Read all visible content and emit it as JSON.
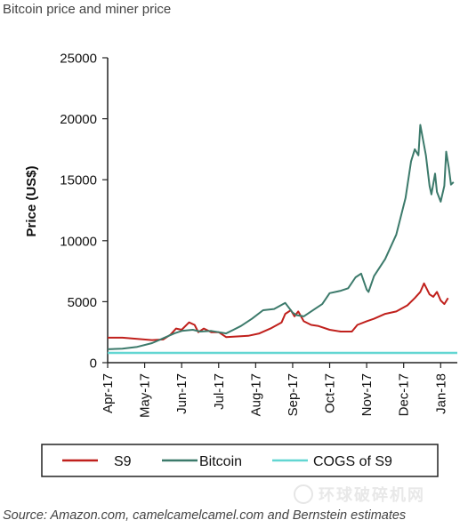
{
  "page": {
    "title": "Bitcoin price and miner price",
    "source": "Source: Amazon.com, camelcamelcamel.com and Bernstein estimates",
    "watermark": "环球破碎机网"
  },
  "chart_data": {
    "type": "line",
    "title": "",
    "xlabel": "",
    "ylabel": "Price (US$)",
    "ylim": [
      0,
      25000
    ],
    "yticks": [
      0,
      5000,
      10000,
      15000,
      20000,
      25000
    ],
    "xlim": [
      0,
      9.45
    ],
    "xticks": [
      "Apr-17",
      "May-17",
      "Jun-17",
      "Jul-17",
      "Aug-17",
      "Sep-17",
      "Oct-17",
      "Nov-17",
      "Dec-17",
      "Jan-18"
    ],
    "grid": false,
    "legend_position": "bottom",
    "series": [
      {
        "name": "S9",
        "color": "#c0201c",
        "points": [
          [
            0,
            2050
          ],
          [
            0.4,
            2050
          ],
          [
            0.8,
            1950
          ],
          [
            1.2,
            1850
          ],
          [
            1.5,
            1900
          ],
          [
            1.7,
            2300
          ],
          [
            1.85,
            2800
          ],
          [
            2.0,
            2700
          ],
          [
            2.2,
            3300
          ],
          [
            2.35,
            3100
          ],
          [
            2.45,
            2500
          ],
          [
            2.6,
            2800
          ],
          [
            2.8,
            2500
          ],
          [
            3.0,
            2500
          ],
          [
            3.2,
            2100
          ],
          [
            3.5,
            2150
          ],
          [
            3.8,
            2200
          ],
          [
            4.1,
            2400
          ],
          [
            4.4,
            2800
          ],
          [
            4.7,
            3300
          ],
          [
            4.8,
            4000
          ],
          [
            4.95,
            4300
          ],
          [
            5.05,
            3800
          ],
          [
            5.15,
            4200
          ],
          [
            5.3,
            3400
          ],
          [
            5.5,
            3100
          ],
          [
            5.7,
            3000
          ],
          [
            6.0,
            2700
          ],
          [
            6.3,
            2550
          ],
          [
            6.6,
            2550
          ],
          [
            6.75,
            3100
          ],
          [
            7.0,
            3400
          ],
          [
            7.2,
            3600
          ],
          [
            7.5,
            4000
          ],
          [
            7.8,
            4200
          ],
          [
            8.1,
            4700
          ],
          [
            8.3,
            5300
          ],
          [
            8.45,
            5800
          ],
          [
            8.55,
            6500
          ],
          [
            8.7,
            5600
          ],
          [
            8.8,
            5400
          ],
          [
            8.9,
            5800
          ],
          [
            9.0,
            5100
          ],
          [
            9.1,
            4800
          ],
          [
            9.2,
            5300
          ]
        ]
      },
      {
        "name": "Bitcoin",
        "color": "#3c7a6b",
        "points": [
          [
            0,
            1100
          ],
          [
            0.4,
            1150
          ],
          [
            0.8,
            1300
          ],
          [
            1.2,
            1600
          ],
          [
            1.5,
            2000
          ],
          [
            1.8,
            2400
          ],
          [
            2.0,
            2600
          ],
          [
            2.3,
            2700
          ],
          [
            2.5,
            2550
          ],
          [
            2.8,
            2600
          ],
          [
            3.0,
            2500
          ],
          [
            3.2,
            2400
          ],
          [
            3.4,
            2700
          ],
          [
            3.6,
            3000
          ],
          [
            3.9,
            3600
          ],
          [
            4.2,
            4300
          ],
          [
            4.5,
            4400
          ],
          [
            4.8,
            4900
          ],
          [
            5.0,
            4100
          ],
          [
            5.1,
            3900
          ],
          [
            5.3,
            3800
          ],
          [
            5.6,
            4400
          ],
          [
            5.8,
            4800
          ],
          [
            6.0,
            5700
          ],
          [
            6.3,
            5900
          ],
          [
            6.5,
            6100
          ],
          [
            6.7,
            7000
          ],
          [
            6.85,
            7300
          ],
          [
            7.0,
            6000
          ],
          [
            7.05,
            5800
          ],
          [
            7.2,
            7100
          ],
          [
            7.5,
            8500
          ],
          [
            7.8,
            10500
          ],
          [
            8.05,
            13500
          ],
          [
            8.2,
            16500
          ],
          [
            8.3,
            17500
          ],
          [
            8.4,
            17000
          ],
          [
            8.45,
            19500
          ],
          [
            8.6,
            17000
          ],
          [
            8.7,
            14500
          ],
          [
            8.75,
            13800
          ],
          [
            8.85,
            15500
          ],
          [
            8.9,
            14000
          ],
          [
            9.0,
            13200
          ],
          [
            9.1,
            14500
          ],
          [
            9.15,
            17300
          ],
          [
            9.22,
            16000
          ],
          [
            9.28,
            14600
          ],
          [
            9.35,
            14800
          ]
        ]
      },
      {
        "name": "COGS of S9",
        "color": "#62d6d2",
        "points": [
          [
            0,
            800
          ],
          [
            9.45,
            800
          ]
        ]
      }
    ]
  }
}
